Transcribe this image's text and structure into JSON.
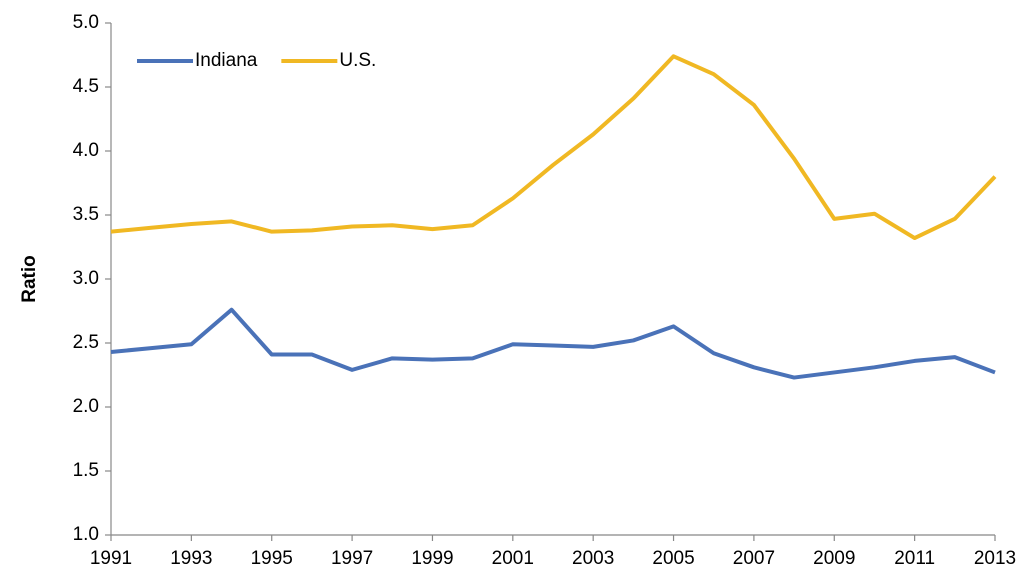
{
  "chart_data": {
    "type": "line",
    "y_label": "Ratio",
    "x": [
      1991,
      1992,
      1993,
      1994,
      1995,
      1996,
      1997,
      1998,
      1999,
      2000,
      2001,
      2002,
      2003,
      2004,
      2005,
      2006,
      2007,
      2008,
      2009,
      2010,
      2011,
      2012,
      2013
    ],
    "series": [
      {
        "name": "Indiana",
        "color": "#4a72b8",
        "values": [
          2.43,
          2.46,
          2.49,
          2.76,
          2.41,
          2.41,
          2.29,
          2.38,
          2.37,
          2.38,
          2.49,
          2.48,
          2.47,
          2.52,
          2.63,
          2.42,
          2.31,
          2.23,
          2.27,
          2.31,
          2.36,
          2.39,
          2.27
        ]
      },
      {
        "name": "U.S.",
        "color": "#f0b823",
        "values": [
          3.37,
          3.4,
          3.43,
          3.45,
          3.37,
          3.38,
          3.41,
          3.42,
          3.39,
          3.42,
          3.63,
          3.89,
          4.13,
          4.41,
          4.74,
          4.6,
          4.36,
          3.94,
          3.47,
          3.51,
          3.32,
          3.47,
          3.8
        ]
      }
    ],
    "xlim": [
      1991,
      2013
    ],
    "xticks": [
      1991,
      1993,
      1995,
      1997,
      1999,
      2001,
      2003,
      2005,
      2007,
      2009,
      2011,
      2013
    ],
    "ylim": [
      1,
      5
    ],
    "yticks": [
      {
        "value": 1,
        "label": "1.0"
      },
      1.5,
      {
        "value": 2,
        "label": "2.0"
      },
      2.5,
      {
        "value": 3,
        "label": "3.0"
      },
      3.5,
      {
        "value": 4,
        "label": "4.0"
      },
      4.5,
      {
        "value": 5,
        "label": "5.0"
      }
    ],
    "legend": "top-left"
  }
}
